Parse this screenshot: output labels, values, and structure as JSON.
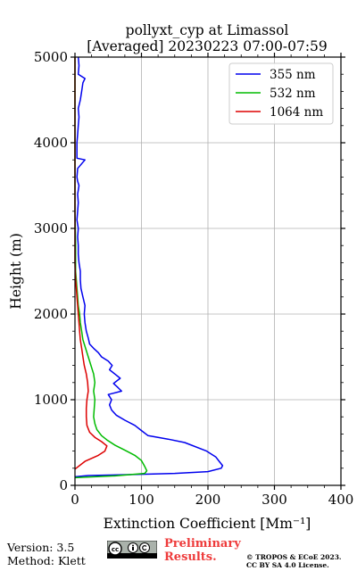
{
  "chart_data": {
    "type": "line",
    "title_line1": "pollyxt_cyp at Limassol",
    "title_line2": "[Averaged] 20230223 07:00-07:59",
    "xlabel": "Extinction Coefficient [Mm⁻¹]",
    "ylabel": "Height (m)",
    "xlim": [
      0,
      400
    ],
    "ylim": [
      0,
      5000
    ],
    "xticks": [
      "0",
      "100",
      "200",
      "300",
      "400"
    ],
    "yticks": [
      "0",
      "1000",
      "2000",
      "3000",
      "4000",
      "5000"
    ],
    "grid": true,
    "legend_position": "top-right",
    "series": [
      {
        "name": "355 nm",
        "color": "#0000ee",
        "points": [
          [
            0,
            100
          ],
          [
            20,
            115
          ],
          [
            80,
            125
          ],
          [
            150,
            140
          ],
          [
            200,
            160
          ],
          [
            220,
            200
          ],
          [
            222,
            230
          ],
          [
            218,
            270
          ],
          [
            212,
            330
          ],
          [
            198,
            400
          ],
          [
            165,
            500
          ],
          [
            140,
            540
          ],
          [
            110,
            580
          ],
          [
            100,
            640
          ],
          [
            90,
            700
          ],
          [
            75,
            760
          ],
          [
            62,
            820
          ],
          [
            55,
            880
          ],
          [
            52,
            940
          ],
          [
            55,
            1000
          ],
          [
            50,
            1060
          ],
          [
            70,
            1100
          ],
          [
            65,
            1140
          ],
          [
            58,
            1190
          ],
          [
            68,
            1250
          ],
          [
            60,
            1300
          ],
          [
            52,
            1350
          ],
          [
            56,
            1400
          ],
          [
            50,
            1450
          ],
          [
            40,
            1500
          ],
          [
            35,
            1550
          ],
          [
            28,
            1600
          ],
          [
            22,
            1650
          ],
          [
            20,
            1720
          ],
          [
            17,
            1800
          ],
          [
            15,
            1900
          ],
          [
            14,
            2000
          ],
          [
            15,
            2100
          ],
          [
            12,
            2200
          ],
          [
            9,
            2300
          ],
          [
            8,
            2400
          ],
          [
            8,
            2500
          ],
          [
            6,
            2600
          ],
          [
            5,
            2700
          ],
          [
            5,
            2800
          ],
          [
            4,
            2900
          ],
          [
            5,
            3000
          ],
          [
            3,
            3100
          ],
          [
            4,
            3200
          ],
          [
            5,
            3300
          ],
          [
            4,
            3400
          ],
          [
            6,
            3500
          ],
          [
            4,
            3550
          ],
          [
            3,
            3600
          ],
          [
            4,
            3700
          ],
          [
            15,
            3800
          ],
          [
            3,
            3820
          ],
          [
            3,
            3900
          ],
          [
            3,
            4000
          ],
          [
            4,
            4100
          ],
          [
            5,
            4200
          ],
          [
            6,
            4300
          ],
          [
            5,
            4400
          ],
          [
            8,
            4500
          ],
          [
            10,
            4600
          ],
          [
            12,
            4700
          ],
          [
            15,
            4750
          ],
          [
            5,
            4800
          ],
          [
            6,
            4900
          ],
          [
            5,
            5000
          ]
        ]
      },
      {
        "name": "532 nm",
        "color": "#00bb00",
        "points": [
          [
            0,
            90
          ],
          [
            60,
            110
          ],
          [
            105,
            140
          ],
          [
            108,
            170
          ],
          [
            105,
            220
          ],
          [
            100,
            290
          ],
          [
            90,
            350
          ],
          [
            75,
            410
          ],
          [
            60,
            470
          ],
          [
            48,
            530
          ],
          [
            40,
            580
          ],
          [
            33,
            650
          ],
          [
            30,
            720
          ],
          [
            28,
            800
          ],
          [
            29,
            900
          ],
          [
            30,
            1000
          ],
          [
            28,
            1100
          ],
          [
            30,
            1200
          ],
          [
            28,
            1300
          ],
          [
            24,
            1400
          ],
          [
            20,
            1500
          ],
          [
            16,
            1600
          ],
          [
            12,
            1700
          ],
          [
            10,
            1800
          ],
          [
            8,
            1900
          ],
          [
            7,
            2000
          ],
          [
            5,
            2100
          ],
          [
            4,
            2200
          ],
          [
            3,
            2300
          ],
          [
            2,
            2400
          ],
          [
            1,
            2500
          ],
          [
            1,
            2800
          ],
          [
            0,
            3200
          ],
          [
            0,
            4000
          ],
          [
            0,
            5000
          ]
        ]
      },
      {
        "name": "1064 nm",
        "color": "#dd0000",
        "points": [
          [
            0,
            190
          ],
          [
            15,
            280
          ],
          [
            35,
            350
          ],
          [
            45,
            400
          ],
          [
            48,
            460
          ],
          [
            40,
            510
          ],
          [
            30,
            560
          ],
          [
            22,
            620
          ],
          [
            18,
            700
          ],
          [
            17,
            800
          ],
          [
            17,
            900
          ],
          [
            18,
            1000
          ],
          [
            20,
            1100
          ],
          [
            19,
            1200
          ],
          [
            17,
            1300
          ],
          [
            14,
            1400
          ],
          [
            12,
            1500
          ],
          [
            10,
            1600
          ],
          [
            8,
            1700
          ],
          [
            7,
            1800
          ],
          [
            6,
            1900
          ],
          [
            5,
            2000
          ],
          [
            4,
            2100
          ],
          [
            3,
            2200
          ],
          [
            2,
            2300
          ],
          [
            1,
            2400
          ],
          [
            0,
            2600
          ],
          [
            0,
            3000
          ],
          [
            0,
            4000
          ],
          [
            0,
            5000
          ]
        ]
      }
    ]
  },
  "footer": {
    "version": "Version: 3.5",
    "method": "Method: Klett",
    "preliminary_line1": "Preliminary",
    "preliminary_line2": "Results.",
    "copyright_line1": "© TROPOS & ECoE 2023.",
    "copyright_line2": "CC BY SA 4.0 License."
  },
  "colors": {
    "grid": "#b0b0b0",
    "preliminary": "#ee3b3b"
  },
  "icons": [
    "cc-by-sa-badge"
  ]
}
